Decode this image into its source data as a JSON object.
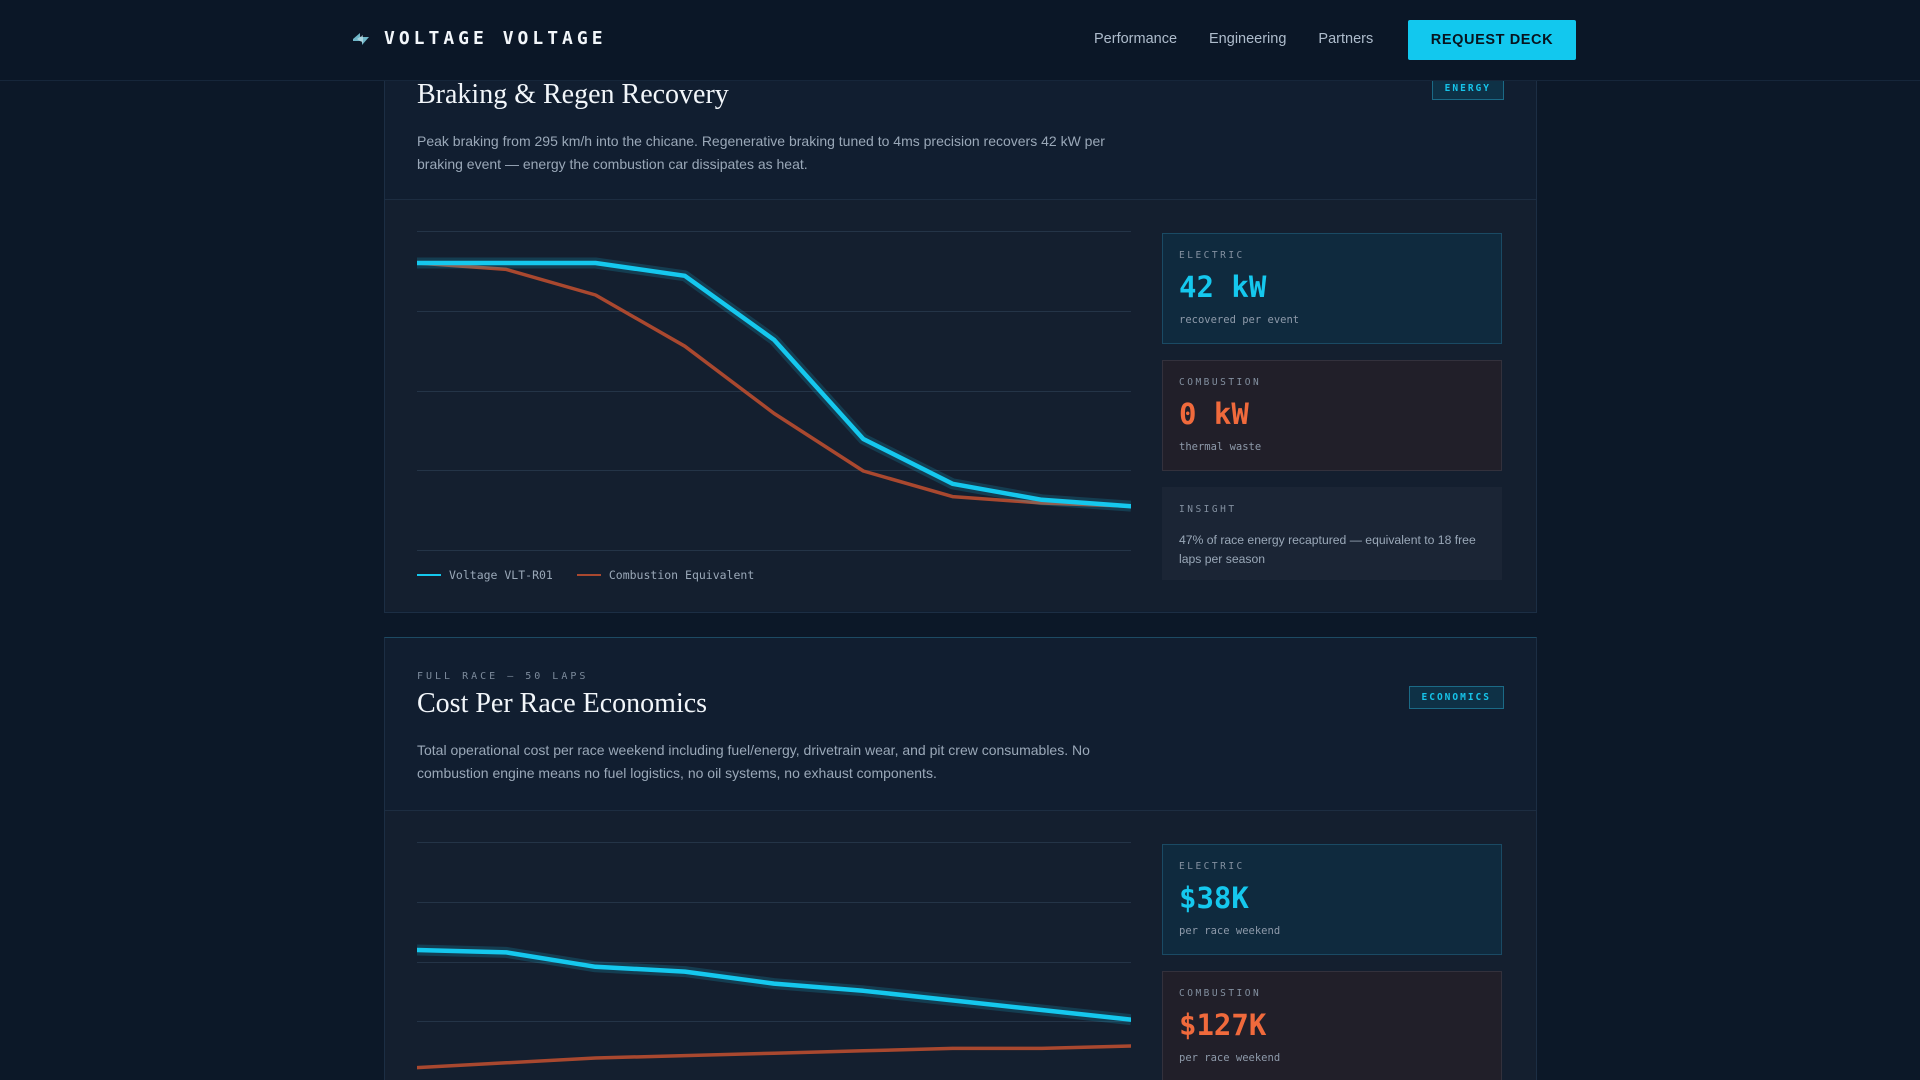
{
  "header": {
    "brand": "VOLTAGE VOLTAGE",
    "brand_icon": "bolt-icon",
    "nav": [
      "Performance",
      "Engineering",
      "Partners"
    ],
    "cta": "REQUEST DECK"
  },
  "sections": [
    {
      "eyebrow": "",
      "title": "Braking & Regen Recovery",
      "tag": "ENERGY",
      "description": "Peak braking from 295 km/h into the chicane. Regenerative braking tuned to 4ms precision recovers 42 kW per braking event — energy the combustion car dissipates as heat.",
      "legend": [
        "Voltage VLT-R01",
        "Combustion Equivalent"
      ],
      "stats": {
        "electric": {
          "label": "ELECTRIC",
          "value": "42 kW",
          "sub": "recovered per event"
        },
        "combustion": {
          "label": "COMBUSTION",
          "value": "0 kW",
          "sub": "thermal waste"
        },
        "insight": {
          "label": "INSIGHT",
          "text": "47% of race energy recaptured — equivalent to 18 free laps per season"
        }
      }
    },
    {
      "eyebrow": "FULL RACE — 50 LAPS",
      "title": "Cost Per Race Economics",
      "tag": "ECONOMICS",
      "description": "Total operational cost per race weekend including fuel/energy, drivetrain wear, and pit crew consumables. No combustion engine means no fuel logistics, no oil systems, no exhaust components.",
      "stats": {
        "electric": {
          "label": "ELECTRIC",
          "value": "$38K",
          "sub": "per race weekend"
        },
        "combustion": {
          "label": "COMBUSTION",
          "value": "$127K",
          "sub": "per race weekend"
        }
      }
    }
  ],
  "colors": {
    "electric": "#15c8ee",
    "combustion": "#a9482f",
    "accent": "#12c8ee"
  },
  "chart_data": [
    {
      "type": "line",
      "title": "",
      "x": [
        0,
        1,
        2,
        3,
        4,
        5,
        6,
        7,
        8
      ],
      "ylim": [
        0,
        100
      ],
      "grid": true,
      "legend": "bottom-left",
      "series": [
        {
          "name": "Voltage VLT-R01",
          "values": [
            90,
            90,
            90,
            86,
            66,
            35,
            21,
            16,
            14
          ]
        },
        {
          "name": "Combustion Equivalent",
          "values": [
            90,
            88,
            80,
            64,
            43,
            25,
            17,
            15,
            14
          ]
        }
      ]
    },
    {
      "type": "line",
      "title": "",
      "x": [
        0,
        1,
        2,
        3,
        4,
        5,
        6,
        7,
        8
      ],
      "ylim": [
        0,
        100
      ],
      "grid": true,
      "series": [
        {
          "values": [
            55,
            54,
            48,
            46,
            41,
            38,
            34,
            30,
            26
          ]
        },
        {
          "values": [
            6,
            8,
            10,
            11,
            12,
            13,
            14,
            14,
            15
          ]
        }
      ]
    }
  ]
}
